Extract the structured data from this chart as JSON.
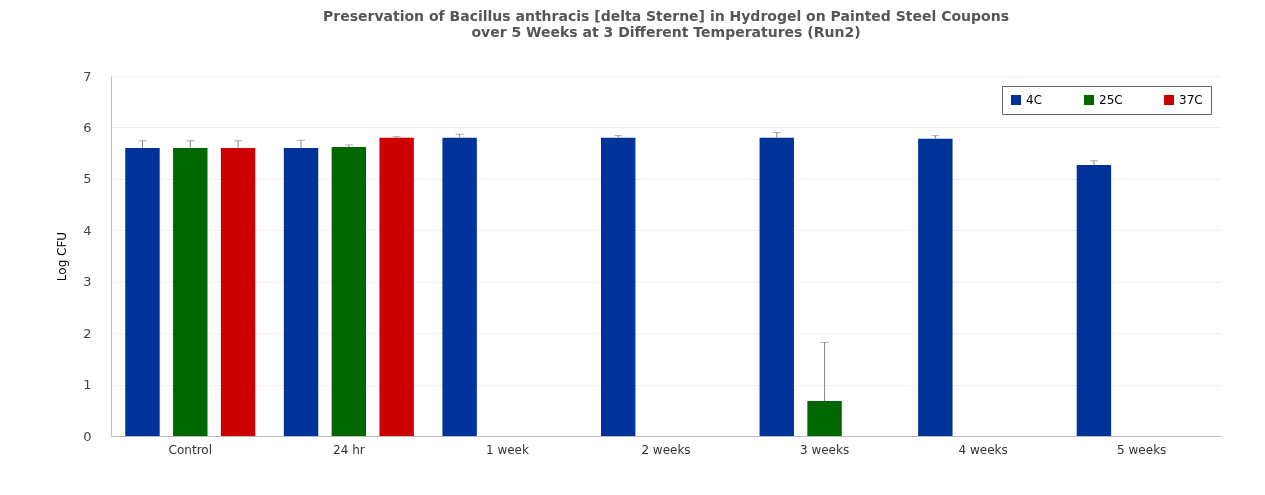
{
  "chart_data": {
    "type": "bar",
    "title": "Preservation of Bacillus anthracis [delta Sterne] in Hydrogel on Painted Steel Coupons\nover 5 Weeks at 3 Different Temperatures (Run2)",
    "ylabel": "Log CFU",
    "categories": [
      "Control",
      "24 hr",
      "1 week",
      "2 weeks",
      "3 weeks",
      "4 weeks",
      "5 weeks"
    ],
    "series": [
      {
        "name": "4C",
        "color": "#003399",
        "values": [
          5.6,
          5.6,
          5.8,
          5.8,
          5.8,
          5.78,
          5.27
        ],
        "errors": [
          [
            5.6,
            5.74
          ],
          [
            5.6,
            5.75
          ],
          [
            5.8,
            5.87
          ],
          [
            5.8,
            5.84
          ],
          [
            5.8,
            5.9
          ],
          [
            5.78,
            5.84
          ],
          [
            5.27,
            5.35
          ]
        ]
      },
      {
        "name": "25C",
        "color": "#006600",
        "values": [
          5.6,
          5.62,
          null,
          null,
          0.68,
          null,
          null
        ],
        "errors": [
          [
            5.6,
            5.74
          ],
          [
            5.62,
            5.66
          ],
          null,
          null,
          [
            0.68,
            1.82
          ],
          null,
          null
        ]
      },
      {
        "name": "37C",
        "color": "#cc0000",
        "values": [
          5.6,
          5.8,
          null,
          null,
          null,
          null,
          null
        ],
        "errors": [
          [
            5.6,
            5.74
          ],
          [
            5.8,
            5.82
          ],
          null,
          null,
          null,
          null,
          null
        ]
      }
    ],
    "ylim": [
      0,
      7
    ],
    "yticks": [
      0,
      1,
      2,
      3,
      4,
      5,
      6,
      7
    ],
    "grid": "y",
    "legend": "top right"
  }
}
